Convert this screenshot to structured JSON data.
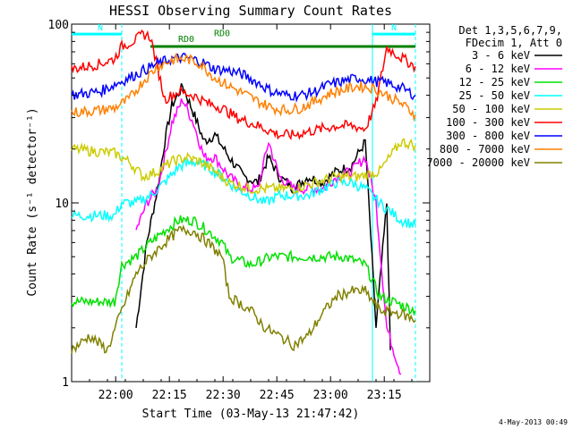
{
  "chart_data": {
    "type": "line",
    "title": "HESSI Observing Summary Count Rates",
    "xlabel": "Start Time (03-May-13 21:47:42)",
    "ylabel": "Count Rate (s⁻¹ detector⁻¹)",
    "yscale": "log",
    "ylim": [
      1,
      100
    ],
    "xlim_minutes": [
      0,
      100
    ],
    "x_ticks": [
      {
        "label": "22:00",
        "minute": 12.3
      },
      {
        "label": "22:15",
        "minute": 27.3
      },
      {
        "label": "22:30",
        "minute": 42.3
      },
      {
        "label": "22:45",
        "minute": 57.3
      },
      {
        "label": "23:00",
        "minute": 72.3
      },
      {
        "label": "23:15",
        "minute": 87.3
      }
    ],
    "y_ticks": [
      "1",
      "10",
      "100"
    ],
    "footer_date": "4-May-2013 00:49",
    "legend": {
      "header": [
        "Det 1,3,5,6,7,9,",
        "FDecim 1, Att 0"
      ],
      "entries": [
        {
          "label": "3 - 6 keV",
          "color": "#000000"
        },
        {
          "label": "6 - 12 keV",
          "color": "#ff00ff"
        },
        {
          "label": "12 - 25 keV",
          "color": "#00e000"
        },
        {
          "label": "25 - 50 keV",
          "color": "#00ffff"
        },
        {
          "label": "50 - 100 keV",
          "color": "#cccc00"
        },
        {
          "label": "100 - 300 keV",
          "color": "#ff0000"
        },
        {
          "label": "300 - 800 keV",
          "color": "#0000ff"
        },
        {
          "label": "800 - 7000 keV",
          "color": "#ff8000"
        },
        {
          "label": "7000 - 20000 keV",
          "color": "#808000"
        }
      ]
    },
    "annotations": [
      {
        "text": "N",
        "color": "#00ffff"
      },
      {
        "text": "N",
        "color": "#00ffff"
      },
      {
        "text": "RD0",
        "color": "#008000"
      },
      {
        "text": "RD0",
        "color": "#008000"
      }
    ],
    "series": [
      {
        "name": "3 - 6 keV",
        "color": "#000000",
        "points": [
          [
            18,
            2
          ],
          [
            21,
            6
          ],
          [
            24,
            12
          ],
          [
            26,
            22
          ],
          [
            28,
            35
          ],
          [
            31,
            45
          ],
          [
            34,
            32
          ],
          [
            37,
            22
          ],
          [
            40,
            24
          ],
          [
            44,
            18
          ],
          [
            48,
            14
          ],
          [
            52,
            13
          ],
          [
            55,
            18
          ],
          [
            58,
            14
          ],
          [
            62,
            12
          ],
          [
            66,
            14
          ],
          [
            70,
            13
          ],
          [
            74,
            15
          ],
          [
            78,
            16
          ],
          [
            82,
            22
          ],
          [
            85,
            2
          ],
          [
            88,
            10
          ],
          [
            89,
            1.5
          ]
        ]
      },
      {
        "name": "6 - 12 keV",
        "color": "#ff00ff",
        "points": [
          [
            18,
            7
          ],
          [
            21,
            10
          ],
          [
            24,
            12
          ],
          [
            26,
            18
          ],
          [
            28,
            28
          ],
          [
            31,
            38
          ],
          [
            34,
            28
          ],
          [
            37,
            18
          ],
          [
            40,
            18
          ],
          [
            44,
            14
          ],
          [
            48,
            12
          ],
          [
            52,
            12
          ],
          [
            55,
            22
          ],
          [
            58,
            14
          ],
          [
            62,
            12
          ],
          [
            66,
            12
          ],
          [
            70,
            12
          ],
          [
            74,
            14
          ],
          [
            78,
            15
          ],
          [
            82,
            18
          ],
          [
            85,
            10
          ],
          [
            88,
            2
          ],
          [
            92,
            1.1
          ]
        ]
      },
      {
        "name": "12 - 25 keV",
        "color": "#00e000",
        "points": [
          [
            0,
            2.8
          ],
          [
            12,
            2.8
          ],
          [
            14,
            4.5
          ],
          [
            18,
            5
          ],
          [
            22,
            6
          ],
          [
            26,
            7
          ],
          [
            30,
            8
          ],
          [
            34,
            8
          ],
          [
            38,
            7
          ],
          [
            42,
            6
          ],
          [
            44,
            5
          ],
          [
            50,
            4.5
          ],
          [
            56,
            5
          ],
          [
            60,
            5
          ],
          [
            66,
            5
          ],
          [
            70,
            5
          ],
          [
            76,
            5
          ],
          [
            82,
            4.5
          ],
          [
            86,
            3
          ],
          [
            96,
            2.5
          ]
        ]
      },
      {
        "name": "25 - 50 keV",
        "color": "#00ffff",
        "points": [
          [
            0,
            8.5
          ],
          [
            12,
            8.5
          ],
          [
            14,
            10
          ],
          [
            18,
            10
          ],
          [
            22,
            11
          ],
          [
            26,
            13
          ],
          [
            30,
            16
          ],
          [
            34,
            17
          ],
          [
            38,
            16
          ],
          [
            42,
            14
          ],
          [
            46,
            12
          ],
          [
            50,
            11
          ],
          [
            54,
            10
          ],
          [
            58,
            11
          ],
          [
            62,
            11
          ],
          [
            66,
            11
          ],
          [
            70,
            12
          ],
          [
            74,
            13
          ],
          [
            78,
            13
          ],
          [
            82,
            12
          ],
          [
            86,
            10
          ],
          [
            92,
            8
          ],
          [
            96,
            7.5
          ]
        ]
      },
      {
        "name": "50 - 100 keV",
        "color": "#cccc00",
        "points": [
          [
            0,
            20
          ],
          [
            12,
            19
          ],
          [
            16,
            17
          ],
          [
            20,
            14
          ],
          [
            24,
            15
          ],
          [
            28,
            17
          ],
          [
            32,
            18
          ],
          [
            36,
            17
          ],
          [
            40,
            15
          ],
          [
            44,
            13
          ],
          [
            50,
            12
          ],
          [
            56,
            12
          ],
          [
            62,
            12
          ],
          [
            68,
            13
          ],
          [
            74,
            14
          ],
          [
            80,
            14
          ],
          [
            86,
            15
          ],
          [
            92,
            22
          ],
          [
            96,
            21
          ]
        ]
      },
      {
        "name": "100 - 300 keV",
        "color": "#ff0000",
        "points": [
          [
            0,
            56
          ],
          [
            8,
            60
          ],
          [
            12,
            64
          ],
          [
            14,
            75
          ],
          [
            18,
            82
          ],
          [
            20,
            88
          ],
          [
            22,
            85
          ],
          [
            26,
            38
          ],
          [
            30,
            42
          ],
          [
            34,
            40
          ],
          [
            38,
            36
          ],
          [
            42,
            34
          ],
          [
            46,
            30
          ],
          [
            50,
            28
          ],
          [
            54,
            26
          ],
          [
            58,
            24
          ],
          [
            62,
            24
          ],
          [
            66,
            25
          ],
          [
            70,
            26
          ],
          [
            74,
            27
          ],
          [
            78,
            27
          ],
          [
            82,
            26
          ],
          [
            85,
            36
          ],
          [
            88,
            74
          ],
          [
            92,
            65
          ],
          [
            96,
            58
          ]
        ]
      },
      {
        "name": "300 - 800 keV",
        "color": "#0000ff",
        "points": [
          [
            0,
            40
          ],
          [
            8,
            42
          ],
          [
            12,
            46
          ],
          [
            16,
            50
          ],
          [
            20,
            55
          ],
          [
            24,
            60
          ],
          [
            28,
            64
          ],
          [
            32,
            65
          ],
          [
            36,
            62
          ],
          [
            40,
            56
          ],
          [
            44,
            55
          ],
          [
            48,
            52
          ],
          [
            52,
            47
          ],
          [
            56,
            42
          ],
          [
            60,
            40
          ],
          [
            64,
            40
          ],
          [
            68,
            42
          ],
          [
            72,
            46
          ],
          [
            76,
            48
          ],
          [
            80,
            50
          ],
          [
            84,
            48
          ],
          [
            88,
            47
          ],
          [
            92,
            44
          ],
          [
            96,
            40
          ]
        ]
      },
      {
        "name": "800 - 7000 keV",
        "color": "#ff8000",
        "points": [
          [
            0,
            32
          ],
          [
            8,
            33
          ],
          [
            12,
            34
          ],
          [
            16,
            38
          ],
          [
            20,
            48
          ],
          [
            24,
            58
          ],
          [
            28,
            63
          ],
          [
            32,
            64
          ],
          [
            36,
            60
          ],
          [
            40,
            50
          ],
          [
            44,
            45
          ],
          [
            48,
            41
          ],
          [
            52,
            37
          ],
          [
            56,
            34
          ],
          [
            60,
            33
          ],
          [
            64,
            34
          ],
          [
            68,
            37
          ],
          [
            72,
            41
          ],
          [
            76,
            43
          ],
          [
            80,
            45
          ],
          [
            84,
            44
          ],
          [
            88,
            40
          ],
          [
            92,
            36
          ],
          [
            96,
            31
          ]
        ]
      },
      {
        "name": "7000 - 20000 keV",
        "color": "#808000",
        "points": [
          [
            0,
            1.5
          ],
          [
            5,
            1.8
          ],
          [
            10,
            1.5
          ],
          [
            14,
            2.5
          ],
          [
            18,
            4
          ],
          [
            22,
            5
          ],
          [
            26,
            6
          ],
          [
            30,
            7
          ],
          [
            34,
            7
          ],
          [
            38,
            6
          ],
          [
            42,
            5
          ],
          [
            44,
            3
          ],
          [
            50,
            2.5
          ],
          [
            54,
            2
          ],
          [
            58,
            1.8
          ],
          [
            62,
            1.6
          ],
          [
            66,
            1.8
          ],
          [
            70,
            2.4
          ],
          [
            74,
            3
          ],
          [
            78,
            3.2
          ],
          [
            82,
            3.2
          ],
          [
            86,
            2.5
          ],
          [
            92,
            2.4
          ],
          [
            96,
            2.2
          ]
        ]
      }
    ]
  }
}
